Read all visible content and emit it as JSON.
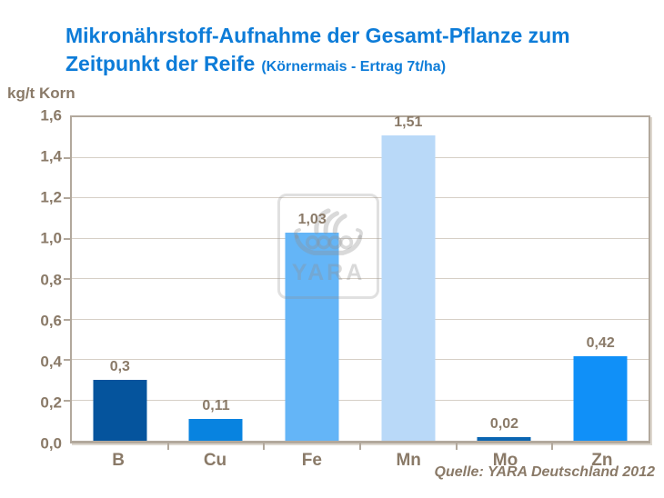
{
  "title": {
    "line1": "Mikronährstoff-Aufnahme der Gesamt-Pflanze zum",
    "line2_main": "Zeitpunkt der Reife",
    "line2_suffix": "(Körnermais - Ertrag 7t/ha)"
  },
  "axis_unit_label": "kg/t Korn",
  "source": "Quelle: YARA Deutschland 2012",
  "watermark": {
    "text": "YARA"
  },
  "colors": {
    "title_blue": "#0d7cd8",
    "axis_text_brown": "#8a7a68",
    "plot_frame": "#b2a89c",
    "gridline": "#d6cfc6",
    "background": "#ffffff"
  },
  "chart_data": {
    "type": "bar",
    "title": "Mikronährstoff-Aufnahme der Gesamt-Pflanze zum Zeitpunkt der Reife (Körnermais - Ertrag 7t/ha)",
    "categories": [
      "B",
      "Cu",
      "Fe",
      "Mn",
      "Mo",
      "Zn"
    ],
    "values": [
      0.3,
      0.11,
      1.03,
      1.51,
      0.02,
      0.42
    ],
    "value_labels": [
      "0,3",
      "0,11",
      "1,03",
      "1,51",
      "0,02",
      "0,42"
    ],
    "bar_colors": [
      "#05549d",
      "#0883e0",
      "#64b5f7",
      "#b9d9f8",
      "#0a65b2",
      "#1090f8"
    ],
    "xlabel": "",
    "ylabel": "kg/t Korn",
    "ylim": [
      0,
      1.6
    ],
    "ytick_labels": [
      "0,0",
      "0,2",
      "0,4",
      "0,6",
      "0,8",
      "1,0",
      "1,2",
      "1,4",
      "1,6"
    ],
    "grid": true,
    "legend": false
  }
}
